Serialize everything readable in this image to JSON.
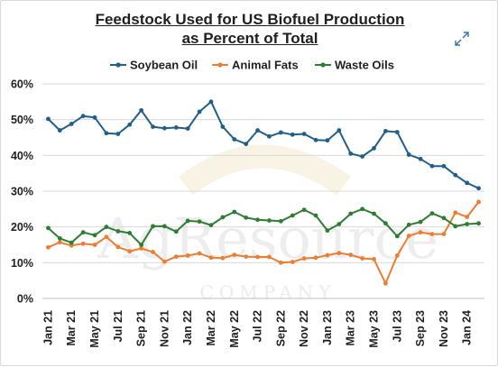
{
  "chart_data": {
    "type": "line",
    "title_lines": [
      "Feedstock Used for US Biofuel Production",
      "as Percent of Total"
    ],
    "xlabel": "",
    "ylabel": "",
    "ylim": [
      0,
      60
    ],
    "yticks": [
      "0%",
      "10%",
      "20%",
      "30%",
      "40%",
      "50%",
      "60%"
    ],
    "ytick_values": [
      0,
      10,
      20,
      30,
      40,
      50,
      60
    ],
    "grid": true,
    "legend_position": "top",
    "watermark": [
      "AgResource",
      "COMPANY"
    ],
    "x": [
      "Jan 21",
      "Feb 21",
      "Mar 21",
      "Apr 21",
      "May 21",
      "Jun 21",
      "Jul 21",
      "Aug 21",
      "Sep 21",
      "Oct 21",
      "Nov 21",
      "Dec 21",
      "Jan 22",
      "Feb 22",
      "Mar 22",
      "Apr 22",
      "May 22",
      "Jun 22",
      "Jul 22",
      "Aug 22",
      "Sep 22",
      "Oct 22",
      "Nov 22",
      "Dec 22",
      "Jan 23",
      "Feb 23",
      "Mar 23",
      "Apr 23",
      "May 23",
      "Jun 23",
      "Jul 23",
      "Aug 23",
      "Sep 23",
      "Oct 23",
      "Nov 23",
      "Dec 23",
      "Jan 24",
      "Feb 24"
    ],
    "x_tick_labels": [
      "Jan 21",
      "Mar 21",
      "May 21",
      "Jul 21",
      "Sep 21",
      "Nov 21",
      "Jan 22",
      "Mar 22",
      "May 22",
      "Jul 22",
      "Sep 22",
      "Nov 22",
      "Jan 23",
      "Mar 23",
      "May 23",
      "Jul 23",
      "Sep 23",
      "Nov 23",
      "Jan 24"
    ],
    "series": [
      {
        "name": "Soybean Oil",
        "color": "#1f5f8b",
        "values": [
          50.2,
          47.0,
          48.8,
          51.0,
          50.6,
          46.2,
          46.0,
          48.6,
          52.6,
          48.0,
          47.6,
          47.8,
          47.5,
          52.2,
          55.0,
          48.0,
          44.5,
          43.2,
          47.0,
          45.3,
          46.4,
          45.8,
          46.0,
          44.3,
          44.2,
          47.0,
          40.5,
          39.7,
          42.0,
          46.8,
          46.5,
          40.2,
          39.0,
          37.0,
          37.0,
          34.5,
          32.3,
          30.8
        ]
      },
      {
        "name": "Animal Fats",
        "color": "#ed7d31",
        "values": [
          14.3,
          15.7,
          14.8,
          15.3,
          15.0,
          17.2,
          14.4,
          13.2,
          14.0,
          13.0,
          10.3,
          11.7,
          12.0,
          12.6,
          11.4,
          11.3,
          12.2,
          11.7,
          11.6,
          11.6,
          10.0,
          10.2,
          11.2,
          11.4,
          12.1,
          12.7,
          12.2,
          11.2,
          11.0,
          4.2,
          12.0,
          17.5,
          18.5,
          18.0,
          18.0,
          24.0,
          22.8,
          27.0
        ]
      },
      {
        "name": "Waste Oils",
        "color": "#2e7d32",
        "values": [
          19.7,
          16.8,
          15.6,
          18.5,
          17.7,
          20.0,
          18.8,
          18.3,
          15.0,
          20.2,
          20.2,
          18.7,
          21.7,
          21.5,
          20.5,
          22.7,
          24.2,
          22.6,
          22.0,
          21.8,
          21.6,
          23.2,
          24.8,
          23.2,
          19.0,
          20.8,
          23.7,
          25.0,
          23.7,
          21.0,
          17.4,
          20.6,
          21.4,
          23.8,
          22.5,
          20.2,
          20.8,
          21.0
        ]
      }
    ]
  },
  "ui": {
    "expand_icon": "expand-arrows-icon"
  }
}
